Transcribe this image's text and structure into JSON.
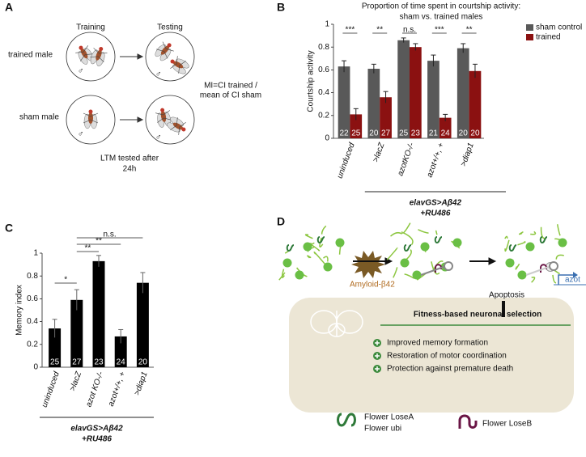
{
  "panel_a": {
    "label": "A",
    "training": "Training",
    "testing": "Testing",
    "trained_male": "trained male",
    "sham_male": "sham male",
    "formula": [
      "MI=CI trained /",
      "mean of CI sham"
    ],
    "ltm": [
      "LTM tested after",
      "24h"
    ]
  },
  "chart_data": [
    {
      "panel_label": "B",
      "type": "bar",
      "title": "Proportion of time spent in courtship activity:",
      "subtitle": "sham vs. trained males",
      "y_label": "Courtship activity",
      "categories": [
        "uninduced",
        ">lacZ",
        "azotKO-/-",
        "azot+/+, +",
        ">diap1"
      ],
      "series": [
        {
          "name": "sham control",
          "color": "#595959",
          "values": [
            0.63,
            0.61,
            0.86,
            0.68,
            0.79
          ],
          "errors": [
            0.05,
            0.04,
            0.02,
            0.05,
            0.04
          ],
          "n_labels": [
            22,
            20,
            25,
            21,
            20
          ]
        },
        {
          "name": "trained",
          "color": "#8b1111",
          "values": [
            0.21,
            0.36,
            0.8,
            0.18,
            0.59
          ],
          "errors": [
            0.05,
            0.05,
            0.03,
            0.03,
            0.06
          ],
          "n_labels": [
            25,
            27,
            23,
            24,
            20
          ]
        }
      ],
      "significance": [
        "***",
        "**",
        "n.s.",
        "***",
        "**"
      ],
      "ylim": [
        0,
        1
      ],
      "yticks": [
        0,
        0.2,
        0.4,
        0.6,
        0.8,
        1
      ],
      "legend": "upper right",
      "group_label": [
        "elavGS>Aβ42",
        "+RU486"
      ]
    },
    {
      "panel_label": "C",
      "type": "bar",
      "y_label": "Memory index",
      "color": "#000000",
      "categories": [
        "uninduced",
        ">lacZ",
        "azot KO-/-",
        "azot+/+, +",
        ">diap1"
      ],
      "values": [
        0.34,
        0.59,
        0.93,
        0.27,
        0.74
      ],
      "errors": [
        0.08,
        0.09,
        0.05,
        0.06,
        0.09
      ],
      "n_labels": [
        25,
        27,
        23,
        24,
        20
      ],
      "annotations": [
        "*",
        "**",
        "**",
        "n.s."
      ],
      "ylim": [
        0,
        1
      ],
      "yticks": [
        0,
        0.2,
        0.4,
        0.6,
        0.8,
        1
      ],
      "group_label": [
        "elavGS>Aβ42",
        "+RU486"
      ]
    }
  ],
  "panel_d": {
    "label": "D",
    "amyloid": "Amyloid-β42",
    "apoptosis": "Apoptosis",
    "gene": "azot",
    "box_title": "Fitness-based neuronal selection",
    "benefits": [
      "Improved memory formation",
      "Restoration of motor coordination",
      "Protection against premature death"
    ],
    "legend": {
      "lose_a": "Flower LoseA",
      "ubi": "Flower ubi",
      "lose_b": "Flower LoseB"
    }
  }
}
